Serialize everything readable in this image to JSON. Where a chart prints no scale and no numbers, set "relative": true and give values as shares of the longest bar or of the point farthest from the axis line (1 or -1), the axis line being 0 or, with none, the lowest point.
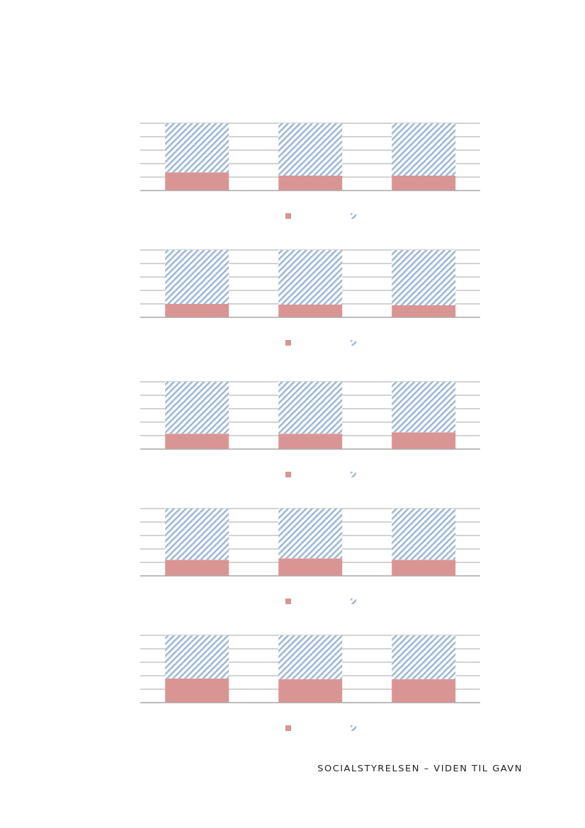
{
  "chart_data": [
    {
      "type": "bar",
      "relative": true,
      "stacked": true,
      "grid": "y",
      "categories": [
        null,
        null,
        null
      ],
      "series": [
        {
          "color": "#d99594",
          "values": [
            0.27,
            0.22,
            0.22
          ]
        },
        {
          "color": "#95b3d7",
          "values": [
            0.73,
            0.78,
            0.78
          ]
        }
      ]
    },
    {
      "type": "bar",
      "relative": true,
      "stacked": true,
      "grid": "y",
      "categories": [
        null,
        null,
        null
      ],
      "series": [
        {
          "color": "#d99594",
          "values": [
            0.2,
            0.19,
            0.18
          ]
        },
        {
          "color": "#95b3d7",
          "values": [
            0.8,
            0.81,
            0.82
          ]
        }
      ]
    },
    {
      "type": "bar",
      "relative": true,
      "stacked": true,
      "grid": "y",
      "categories": [
        null,
        null,
        null
      ],
      "series": [
        {
          "color": "#d99594",
          "values": [
            0.23,
            0.23,
            0.25
          ]
        },
        {
          "color": "#95b3d7",
          "values": [
            0.77,
            0.77,
            0.75
          ]
        }
      ]
    },
    {
      "type": "bar",
      "relative": true,
      "stacked": true,
      "grid": "y",
      "categories": [
        null,
        null,
        null
      ],
      "series": [
        {
          "color": "#d99594",
          "values": [
            0.24,
            0.26,
            0.24
          ]
        },
        {
          "color": "#95b3d7",
          "values": [
            0.76,
            0.74,
            0.76
          ]
        }
      ]
    },
    {
      "type": "bar",
      "relative": true,
      "stacked": true,
      "grid": "y",
      "categories": [
        null,
        null,
        null
      ],
      "annotations": [
        "SOCIALSTYRELSEN – VIDEN TIL GAVN"
      ],
      "series": [
        {
          "color": "#d99594",
          "values": [
            0.36,
            0.35,
            0.35
          ]
        },
        {
          "color": "#95b3d7",
          "values": [
            0.64,
            0.65,
            0.65
          ]
        }
      ]
    }
  ]
}
